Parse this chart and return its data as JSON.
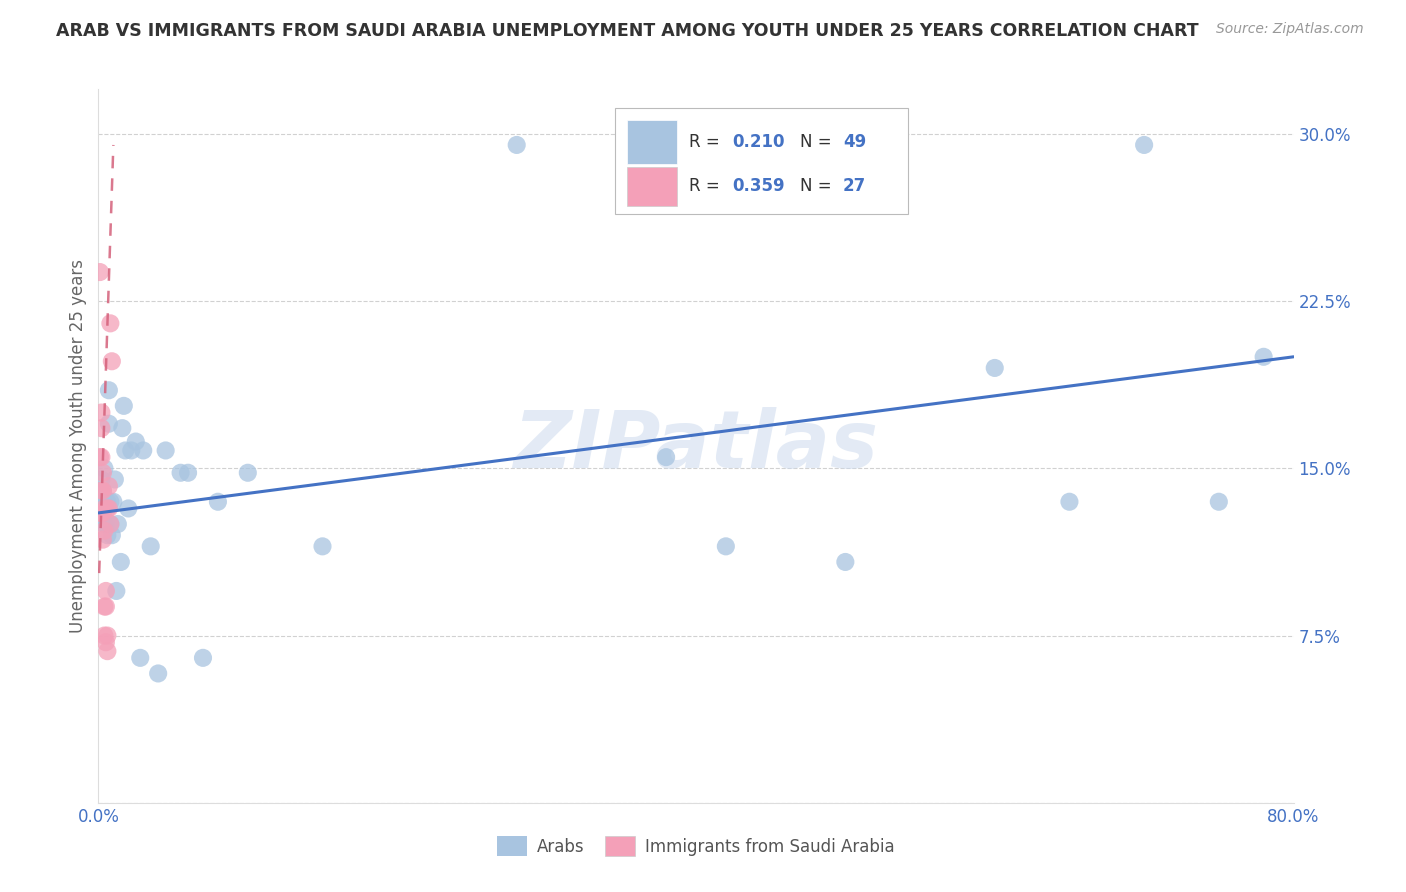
{
  "title": "ARAB VS IMMIGRANTS FROM SAUDI ARABIA UNEMPLOYMENT AMONG YOUTH UNDER 25 YEARS CORRELATION CHART",
  "source": "Source: ZipAtlas.com",
  "ylabel": "Unemployment Among Youth under 25 years",
  "xlim": [
    0,
    0.8
  ],
  "ylim": [
    0,
    0.32
  ],
  "xtick_positions": [
    0.0,
    0.1,
    0.2,
    0.3,
    0.4,
    0.5,
    0.6,
    0.7,
    0.8
  ],
  "xticklabels": [
    "0.0%",
    "",
    "",
    "",
    "",
    "",
    "",
    "",
    "80.0%"
  ],
  "ytick_positions": [
    0.0,
    0.075,
    0.15,
    0.225,
    0.3
  ],
  "yticklabels": [
    "",
    "7.5%",
    "15.0%",
    "22.5%",
    "30.0%"
  ],
  "legend_r1": "0.210",
  "legend_n1": "49",
  "legend_r2": "0.359",
  "legend_n2": "27",
  "watermark": "ZIPatlas",
  "arab_color": "#a8c4e0",
  "immigrant_color": "#f4a0b8",
  "arab_line_color": "#4472c4",
  "immigrant_line_color": "#d4607a",
  "tick_color": "#4472c4",
  "title_color": "#333333",
  "source_color": "#999999",
  "ylabel_color": "#666666",
  "grid_color": "#cccccc",
  "legend_text_dark": "#333333",
  "legend_text_blue": "#4472c4",
  "arab_x": [
    0.001,
    0.001,
    0.002,
    0.002,
    0.003,
    0.003,
    0.004,
    0.004,
    0.004,
    0.005,
    0.005,
    0.006,
    0.006,
    0.007,
    0.007,
    0.008,
    0.008,
    0.009,
    0.01,
    0.011,
    0.012,
    0.013,
    0.015,
    0.016,
    0.017,
    0.018,
    0.02,
    0.022,
    0.025,
    0.028,
    0.03,
    0.035,
    0.04,
    0.045,
    0.055,
    0.06,
    0.07,
    0.08,
    0.1,
    0.15,
    0.28,
    0.38,
    0.42,
    0.5,
    0.6,
    0.65,
    0.7,
    0.75,
    0.78
  ],
  "arab_y": [
    0.13,
    0.14,
    0.13,
    0.145,
    0.13,
    0.14,
    0.125,
    0.135,
    0.15,
    0.125,
    0.135,
    0.12,
    0.135,
    0.17,
    0.185,
    0.125,
    0.135,
    0.12,
    0.135,
    0.145,
    0.095,
    0.125,
    0.108,
    0.168,
    0.178,
    0.158,
    0.132,
    0.158,
    0.162,
    0.065,
    0.158,
    0.115,
    0.058,
    0.158,
    0.148,
    0.148,
    0.065,
    0.135,
    0.148,
    0.115,
    0.295,
    0.155,
    0.115,
    0.108,
    0.195,
    0.135,
    0.295,
    0.135,
    0.2
  ],
  "imm_x": [
    0.001,
    0.001,
    0.001,
    0.002,
    0.002,
    0.002,
    0.002,
    0.002,
    0.003,
    0.003,
    0.003,
    0.003,
    0.004,
    0.004,
    0.004,
    0.004,
    0.005,
    0.005,
    0.005,
    0.006,
    0.006,
    0.006,
    0.007,
    0.007,
    0.008,
    0.008,
    0.009
  ],
  "imm_y": [
    0.13,
    0.155,
    0.238,
    0.13,
    0.14,
    0.155,
    0.168,
    0.175,
    0.118,
    0.13,
    0.14,
    0.148,
    0.075,
    0.088,
    0.122,
    0.132,
    0.072,
    0.088,
    0.095,
    0.068,
    0.075,
    0.132,
    0.132,
    0.142,
    0.215,
    0.125,
    0.198
  ],
  "arab_line_x0": 0.0,
  "arab_line_x1": 0.8,
  "arab_line_y0": 0.13,
  "arab_line_y1": 0.2,
  "imm_line_x0": 0.0005,
  "imm_line_x1": 0.01,
  "imm_line_y0": 0.103,
  "imm_line_y1": 0.295
}
